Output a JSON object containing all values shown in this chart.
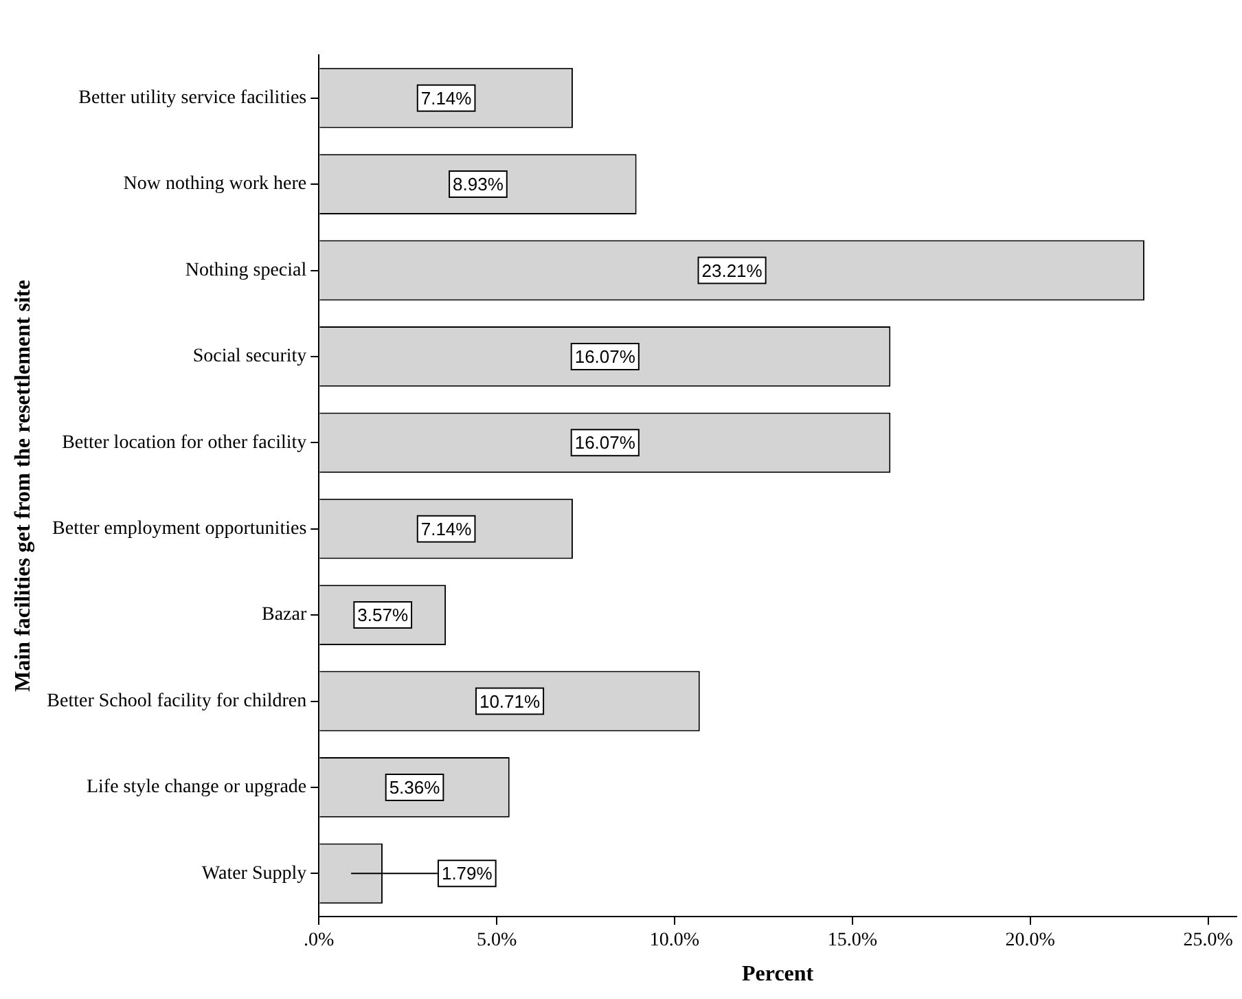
{
  "chart_data": {
    "type": "bar",
    "orientation": "horizontal",
    "xlabel": "Percent",
    "ylabel": "Main facilities get from the resettlement site",
    "categories": [
      "Better utility service facilities",
      "Now nothing work here",
      "Nothing special",
      "Social security",
      "Better location for other facility",
      "Better employment opportunities",
      "Bazar",
      "Better School facility for children",
      "Life style change or upgrade",
      "Water Supply"
    ],
    "values": [
      7.14,
      8.93,
      23.21,
      16.07,
      16.07,
      7.14,
      3.57,
      10.71,
      5.36,
      1.79
    ],
    "value_labels": [
      "7.14%",
      "8.93%",
      "23.21%",
      "16.07%",
      "16.07%",
      "7.14%",
      "3.57%",
      "10.71%",
      "5.36%",
      "1.79%"
    ],
    "color": "#d4d4d4",
    "xlim": [
      0,
      25.8
    ],
    "xticks": [
      {
        "value": 0,
        "label": ".0%"
      },
      {
        "value": 5,
        "label": "5.0%"
      },
      {
        "value": 10,
        "label": "10.0%"
      },
      {
        "value": 15,
        "label": "15.0%"
      },
      {
        "value": 20,
        "label": "20.0%"
      },
      {
        "value": 25,
        "label": "25.0%"
      }
    ],
    "grid": false,
    "legend": false
  }
}
